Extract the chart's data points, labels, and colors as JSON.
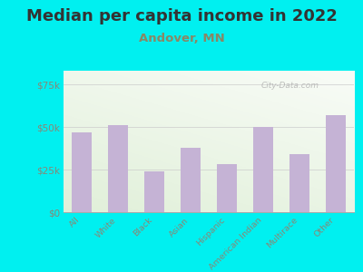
{
  "title": "Median per capita income in 2022",
  "subtitle": "Andover, MN",
  "categories": [
    "All",
    "White",
    "Black",
    "Asian",
    "Hispanic",
    "American Indian",
    "Multirace",
    "Other"
  ],
  "values": [
    47000,
    51000,
    24000,
    38000,
    28000,
    50000,
    34000,
    57000
  ],
  "bar_color": "#c5b3d5",
  "yticks": [
    0,
    25000,
    50000,
    75000
  ],
  "ytick_labels": [
    "$0",
    "$25k",
    "$50k",
    "$75k"
  ],
  "ylim": [
    0,
    83000
  ],
  "background_outer": "#00f0f0",
  "title_fontsize": 13,
  "subtitle_fontsize": 9.5,
  "subtitle_color": "#888866",
  "tick_label_color": "#888877",
  "watermark": "City-Data.com",
  "bar_width": 0.55
}
